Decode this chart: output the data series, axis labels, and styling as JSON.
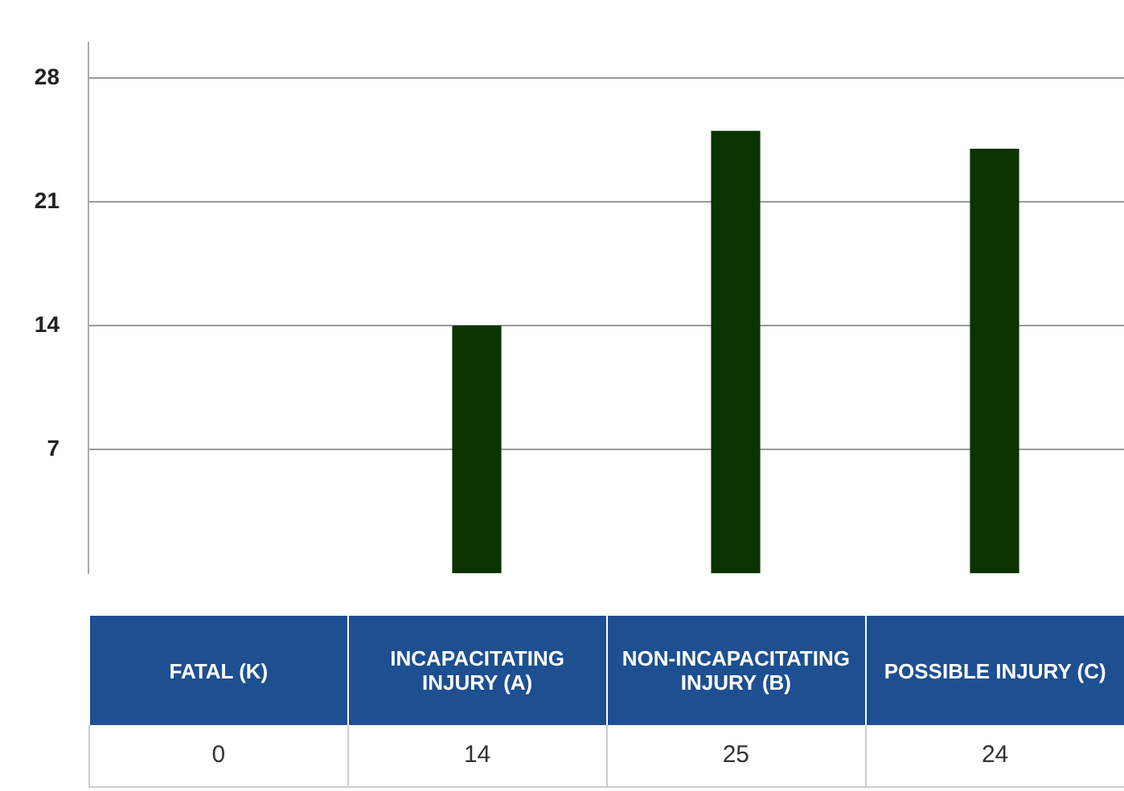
{
  "chart_data": {
    "type": "bar",
    "categories": [
      "FATAL (K)",
      "INCAPACITATING INJURY (A)",
      "NON-INCAPACITATING INJURY (B)",
      "POSSIBLE INJURY (C)"
    ],
    "values": [
      0,
      14,
      25,
      24
    ],
    "color": "#0b3300",
    "ylim": [
      0,
      30
    ],
    "yticks": [
      7,
      14,
      21,
      28
    ],
    "grid": "y",
    "legend": false,
    "data_labels": true
  }
}
